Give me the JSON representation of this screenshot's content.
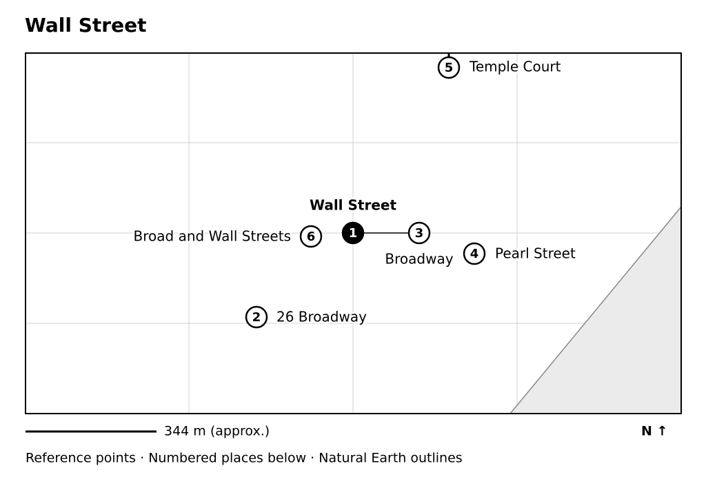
{
  "header": {
    "title": "Wall Street"
  },
  "places": [
    {
      "number": "1",
      "label": "Wall Street"
    },
    {
      "number": "2",
      "label": "26 Broadway"
    },
    {
      "number": "3",
      "label": "Broadway"
    },
    {
      "number": "4",
      "label": "Pearl Street"
    },
    {
      "number": "5",
      "label": "Temple Court"
    },
    {
      "number": "6",
      "label": "Broad and Wall Streets"
    }
  ],
  "scale": {
    "label": "344 m (approx.)"
  },
  "north": {
    "label": "N ↑"
  },
  "footer": {
    "text": "Reference points · Numbered places below · Natural Earth outlines"
  }
}
